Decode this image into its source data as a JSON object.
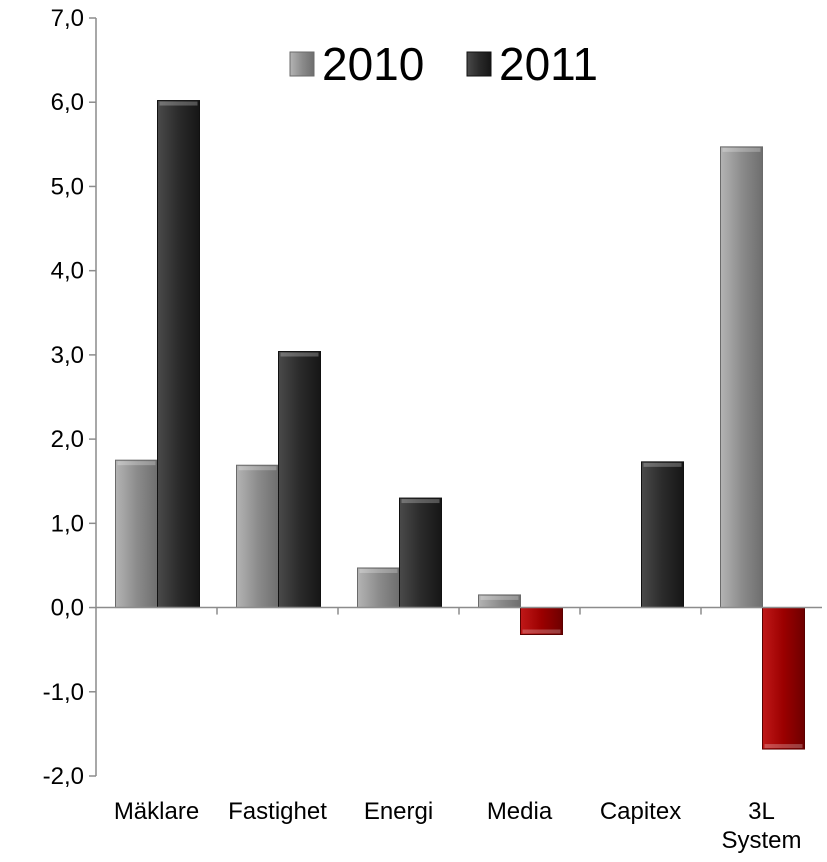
{
  "chart_data": {
    "type": "bar",
    "categories": [
      [
        "Mäklare"
      ],
      [
        "Fastighet"
      ],
      [
        "Energi"
      ],
      [
        "Media"
      ],
      [
        "Capitex"
      ],
      [
        "3L",
        "System"
      ]
    ],
    "series": [
      {
        "name": "2010",
        "values": [
          1.75,
          1.69,
          0.47,
          0.15,
          0,
          5.47
        ]
      },
      {
        "name": "2011",
        "values": [
          6.02,
          3.04,
          1.3,
          -0.32,
          1.73,
          -1.68
        ]
      }
    ],
    "ylim": [
      -2,
      7
    ],
    "yticks": [
      "7,0",
      "6,0",
      "5,0",
      "4,0",
      "3,0",
      "2,0",
      "1,0",
      "0,0",
      "-1,0",
      "-2,0"
    ],
    "legend": {
      "position": "top-center"
    },
    "grid": false,
    "colors": {
      "2010": "#8c8c8c",
      "2011": "#2b2b2b",
      "negative": "#9b0000"
    }
  }
}
